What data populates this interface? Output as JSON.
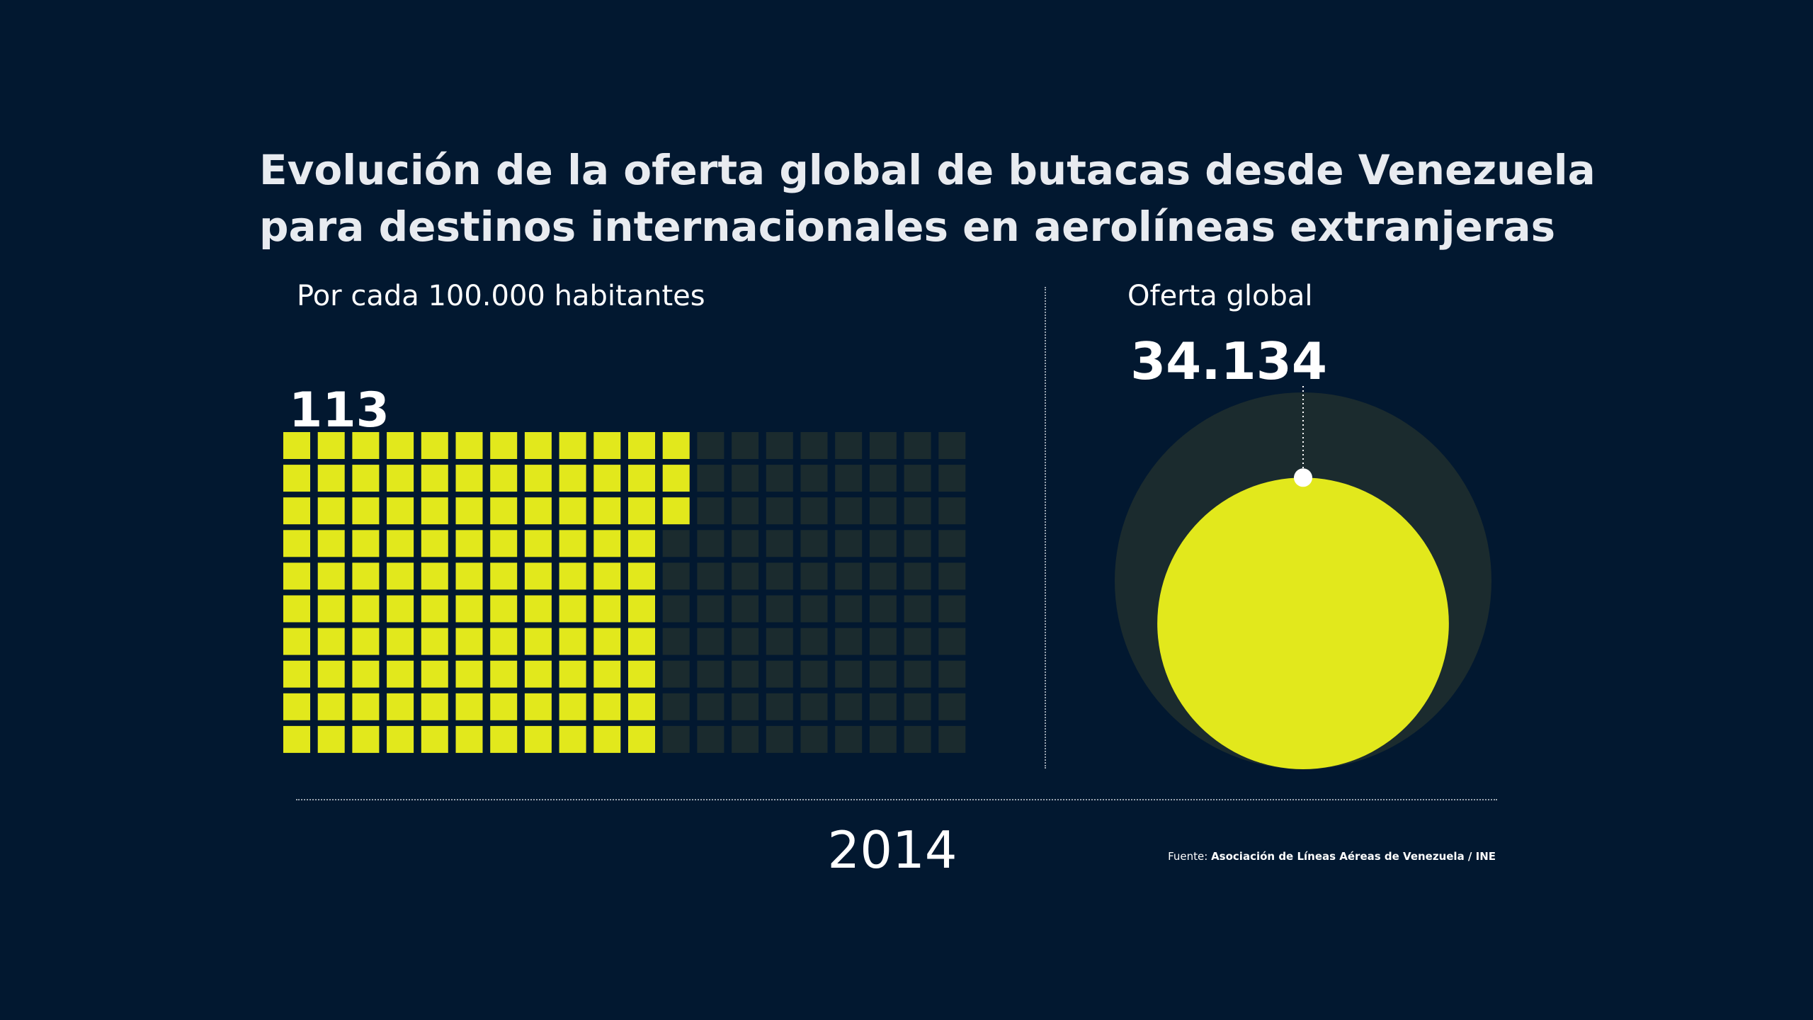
{
  "title": {
    "line1": "Evolución de la oferta global de butacas desde Venezuela",
    "line2": "para destinos internacionales en aerolíneas extranjeras"
  },
  "colors": {
    "background": "#021830",
    "accent": "#e2e81c",
    "muted": "#1b2b2e",
    "text": "#ffffff"
  },
  "sections": {
    "per_capita_label": "Por cada 100.000 habitantes",
    "global_label": "Oferta global"
  },
  "year": "2014",
  "source": {
    "prefix": "Fuente: ",
    "text": "Asociación de Líneas Aéreas de Venezuela / INE"
  },
  "chart_data": [
    {
      "type": "waffle",
      "title": "Por cada 100.000 habitantes",
      "value": 113,
      "value_label": "113",
      "total": 200,
      "unit": "butacas por 100.000 habitantes",
      "year": "2014"
    },
    {
      "type": "proportional-circle",
      "title": "Oferta global",
      "value": 34134,
      "value_label": "34.134",
      "reference_value": 57000,
      "unit": "butacas",
      "year": "2014"
    }
  ]
}
